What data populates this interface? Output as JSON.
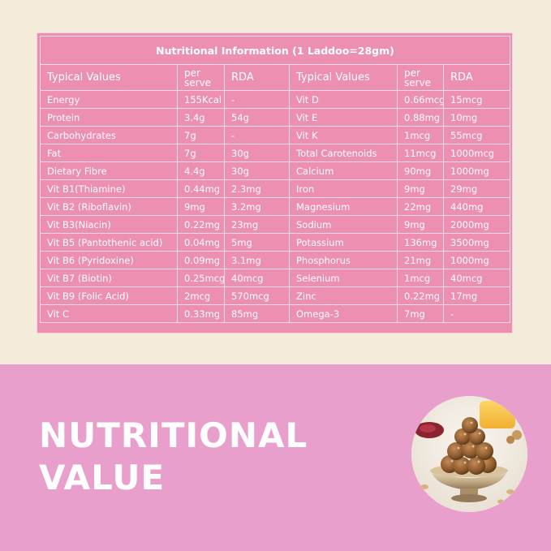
{
  "table": {
    "title": "Nutritional Information  (1 Laddoo=28gm)",
    "headers": [
      "Typical Values",
      "per serve",
      "RDA",
      "Typical Values",
      "per serve",
      "RDA"
    ],
    "rows": [
      [
        "Energy",
        "155Kcal",
        "-",
        "Vit D",
        "0.66mcg",
        "15mcg"
      ],
      [
        "Protein",
        "3.4g",
        "54g",
        "Vit E",
        "0.88mg",
        "10mg"
      ],
      [
        "Carbohydrates",
        "7g",
        "-",
        "Vit K",
        "1mcg",
        "55mcg"
      ],
      [
        "Fat",
        "7g",
        "30g",
        "Total Carotenoids",
        "11mcg",
        "1000mcg"
      ],
      [
        "Dietary Fibre",
        "4.4g",
        "30g",
        "Calcium",
        "90mg",
        "1000mg"
      ],
      [
        "Vit B1(Thiamine)",
        "0.44mg",
        "2.3mg",
        "Iron",
        "9mg",
        "29mg"
      ],
      [
        "Vit B2 (Riboflavin)",
        "9mg",
        "3.2mg",
        "Magnesium",
        "22mg",
        "440mg"
      ],
      [
        "Vit B3(Niacin)",
        "0.22mg",
        "23mg",
        "Sodium",
        "9mg",
        "2000mg"
      ],
      [
        "Vit B5 (Pantothenic acid)",
        "0.04mg",
        "5mg",
        "Potassium",
        "136mg",
        "3500mg"
      ],
      [
        "Vit B6 (Pyridoxine)",
        "0.09mg",
        "3.1mg",
        "Phosphorus",
        "21mg",
        "1000mg"
      ],
      [
        "Vit B7 (Biotin)",
        "0.25mcg",
        "40mcg",
        "Selenium",
        "1mcg",
        "40mcg"
      ],
      [
        "Vit B9 (Folic Acid)",
        "2mcg",
        "570mcg",
        "Zinc",
        "0.22mg",
        "17mg"
      ],
      [
        "Vit C",
        "0.33mg",
        "85mg",
        "Omega-3",
        "7mg",
        "-"
      ]
    ]
  },
  "headline": {
    "line1": "NUTRITIONAL",
    "line2": "VALUE"
  },
  "colors": {
    "cream_background": "#f4ecdb",
    "pink_background": "#e89fcb",
    "table_pink": "#ec8fb1",
    "text_white": "#ffffff"
  }
}
